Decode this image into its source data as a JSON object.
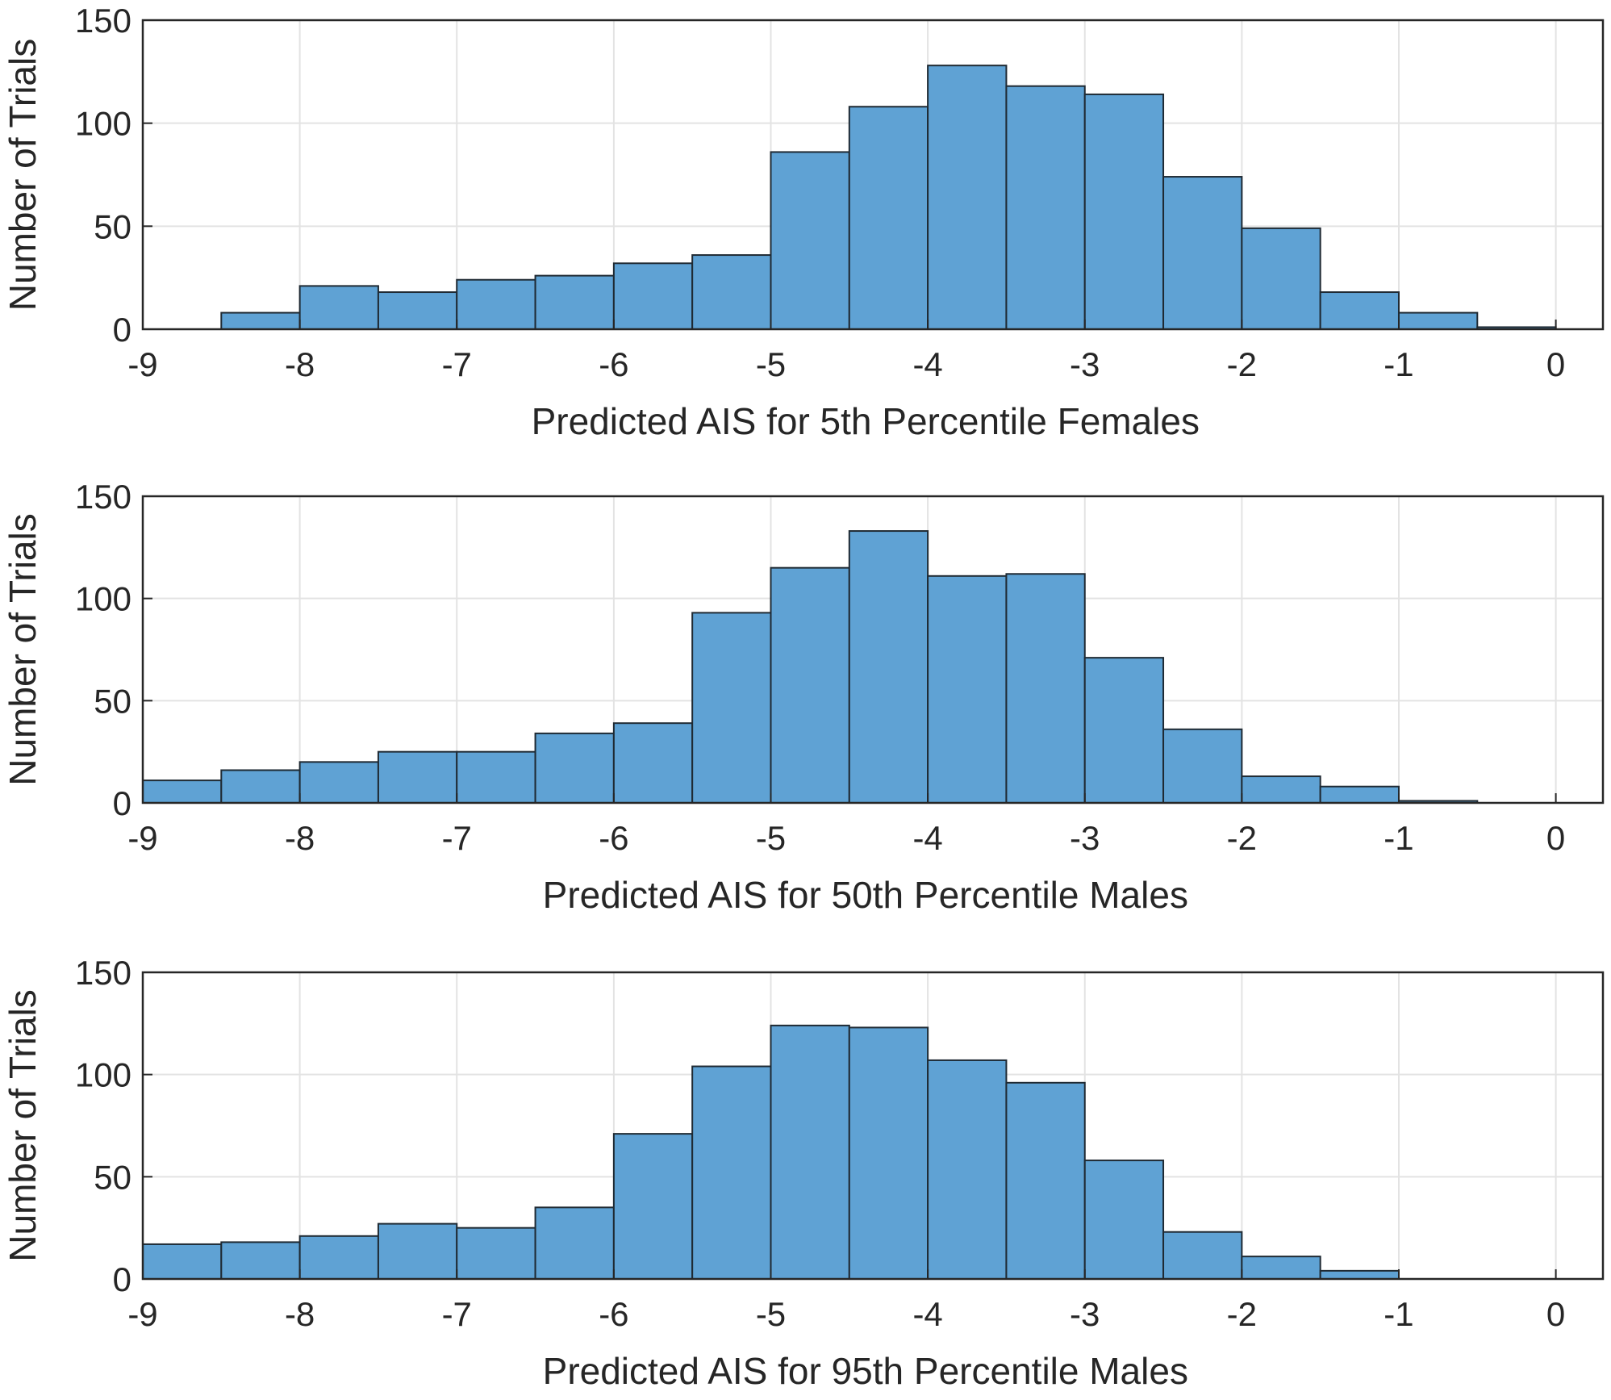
{
  "chart_data": [
    {
      "type": "bar",
      "xlabel": "Predicted AIS for 5th Percentile Females",
      "ylabel": "Number of Trials",
      "xlim": [
        -9,
        0.3
      ],
      "ylim": [
        0,
        150
      ],
      "xticks": [
        "-9",
        "-8",
        "-7",
        "-6",
        "-5",
        "-4",
        "-3",
        "-2",
        "-1",
        "0"
      ],
      "yticks": [
        "0",
        "50",
        "100",
        "150"
      ],
      "grid": true,
      "bar_color": "#5fa2d4",
      "bins": [
        [
          -9.0,
          -8.5
        ],
        [
          -8.5,
          -8.0
        ],
        [
          -8.0,
          -7.5
        ],
        [
          -7.5,
          -7.0
        ],
        [
          -7.0,
          -6.5
        ],
        [
          -6.5,
          -6.0
        ],
        [
          -6.0,
          -5.5
        ],
        [
          -5.5,
          -5.0
        ],
        [
          -5.0,
          -4.5
        ],
        [
          -4.5,
          -4.0
        ],
        [
          -4.0,
          -3.5
        ],
        [
          -3.5,
          -3.0
        ],
        [
          -3.0,
          -2.5
        ],
        [
          -2.5,
          -2.0
        ],
        [
          -2.0,
          -1.5
        ],
        [
          -1.5,
          -1.0
        ],
        [
          -1.0,
          -0.5
        ],
        [
          -0.5,
          0.0
        ]
      ],
      "values": [
        0,
        8,
        21,
        18,
        24,
        26,
        32,
        36,
        86,
        108,
        128,
        118,
        114,
        74,
        49,
        18,
        8,
        1
      ]
    },
    {
      "type": "bar",
      "xlabel": "Predicted AIS for 50th Percentile Males",
      "ylabel": "Number of Trials",
      "xlim": [
        -9,
        0.3
      ],
      "ylim": [
        0,
        150
      ],
      "xticks": [
        "-9",
        "-8",
        "-7",
        "-6",
        "-5",
        "-4",
        "-3",
        "-2",
        "-1",
        "0"
      ],
      "yticks": [
        "0",
        "50",
        "100",
        "150"
      ],
      "grid": true,
      "bar_color": "#5fa2d4",
      "bins": [
        [
          -9.0,
          -8.5
        ],
        [
          -8.5,
          -8.0
        ],
        [
          -8.0,
          -7.5
        ],
        [
          -7.5,
          -7.0
        ],
        [
          -7.0,
          -6.5
        ],
        [
          -6.5,
          -6.0
        ],
        [
          -6.0,
          -5.5
        ],
        [
          -5.5,
          -5.0
        ],
        [
          -5.0,
          -4.5
        ],
        [
          -4.5,
          -4.0
        ],
        [
          -4.0,
          -3.5
        ],
        [
          -3.5,
          -3.0
        ],
        [
          -3.0,
          -2.5
        ],
        [
          -2.5,
          -2.0
        ],
        [
          -2.0,
          -1.5
        ],
        [
          -1.5,
          -1.0
        ],
        [
          -1.0,
          -0.5
        ],
        [
          -0.5,
          0.0
        ]
      ],
      "values": [
        11,
        16,
        20,
        25,
        25,
        34,
        39,
        93,
        115,
        133,
        111,
        112,
        71,
        36,
        13,
        8,
        1,
        0
      ]
    },
    {
      "type": "bar",
      "xlabel": "Predicted AIS for 95th Percentile Males",
      "ylabel": "Number of Trials",
      "xlim": [
        -9,
        0.3
      ],
      "ylim": [
        0,
        150
      ],
      "xticks": [
        "-9",
        "-8",
        "-7",
        "-6",
        "-5",
        "-4",
        "-3",
        "-2",
        "-1",
        "0"
      ],
      "yticks": [
        "0",
        "50",
        "100",
        "150"
      ],
      "grid": true,
      "bar_color": "#5fa2d4",
      "bins": [
        [
          -9.0,
          -8.5
        ],
        [
          -8.5,
          -8.0
        ],
        [
          -8.0,
          -7.5
        ],
        [
          -7.5,
          -7.0
        ],
        [
          -7.0,
          -6.5
        ],
        [
          -6.5,
          -6.0
        ],
        [
          -6.0,
          -5.5
        ],
        [
          -5.5,
          -5.0
        ],
        [
          -5.0,
          -4.5
        ],
        [
          -4.5,
          -4.0
        ],
        [
          -4.0,
          -3.5
        ],
        [
          -3.5,
          -3.0
        ],
        [
          -3.0,
          -2.5
        ],
        [
          -2.5,
          -2.0
        ],
        [
          -2.0,
          -1.5
        ],
        [
          -1.5,
          -1.0
        ],
        [
          -1.0,
          -0.5
        ],
        [
          -0.5,
          0.0
        ]
      ],
      "values": [
        17,
        18,
        21,
        27,
        25,
        35,
        71,
        104,
        124,
        123,
        107,
        96,
        58,
        23,
        11,
        4,
        0,
        0
      ]
    }
  ]
}
